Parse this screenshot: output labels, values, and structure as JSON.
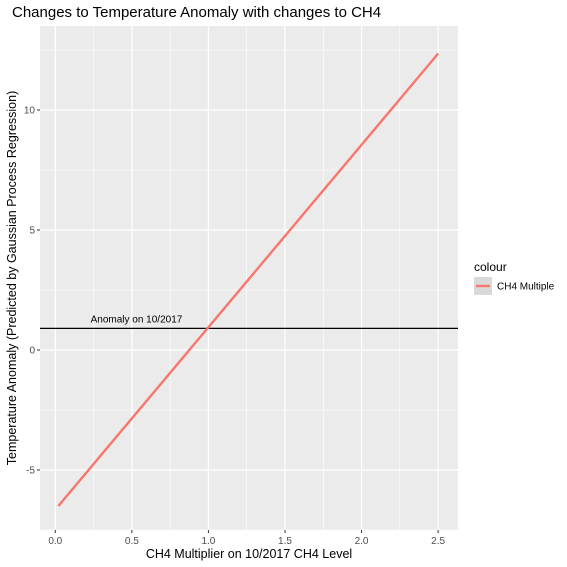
{
  "chart_data": {
    "type": "line",
    "title": "Changes to Temperature Anomaly with changes to CH4",
    "xlabel": "CH4 Multiplier on 10/2017 CH4 Level",
    "ylabel": "Temperature Anomaly (Predicted by Gaussian Process Regression)",
    "xlim": [
      -0.1,
      2.63
    ],
    "ylim": [
      -7.5,
      13.5
    ],
    "x_ticks": [
      0.0,
      0.5,
      1.0,
      1.5,
      2.0,
      2.5
    ],
    "x_tick_labels": [
      "0.0",
      "0.5",
      "1.0",
      "1.5",
      "2.0",
      "2.5"
    ],
    "y_ticks": [
      -5,
      0,
      5,
      10
    ],
    "y_tick_labels": [
      "-5",
      "0",
      "5",
      "10"
    ],
    "grid": true,
    "legend": {
      "title": "colour",
      "position": "right",
      "entries": [
        {
          "label": "CH4 Multiple",
          "color": "#F8766D"
        }
      ]
    },
    "series": [
      {
        "name": "CH4 Multiple",
        "color": "#F8766D",
        "x": [
          0.02,
          2.5
        ],
        "y": [
          -6.5,
          12.35
        ]
      }
    ],
    "hline": {
      "y": 0.9,
      "color": "#000000",
      "label": "Anomaly on 10/2017"
    }
  }
}
